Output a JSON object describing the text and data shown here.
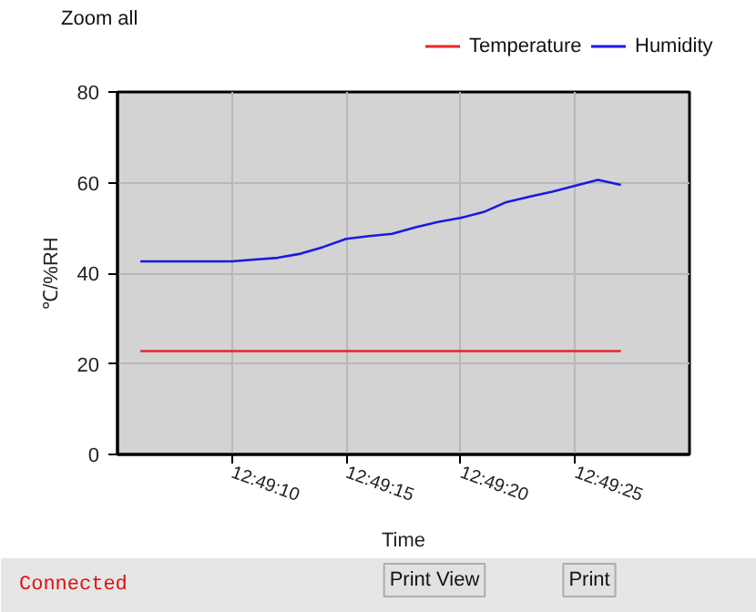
{
  "chart_data": {
    "type": "line",
    "xlabel": "Time",
    "ylabel": "℃/%RH",
    "x": [
      12.818333,
      12.818611,
      12.818889,
      12.819167,
      12.819444,
      12.819722,
      12.82,
      12.820278,
      12.820556,
      12.820833,
      12.821111,
      12.821389,
      12.821667,
      12.821944,
      12.822222,
      12.8225,
      12.822778,
      12.823056,
      12.823333,
      12.823611,
      12.823889,
      12.824167
    ],
    "series": [
      {
        "name": "Temperature",
        "color": "#e8262b",
        "values": [
          22.8,
          22.8,
          22.8,
          22.8,
          22.8,
          22.8,
          22.8,
          22.8,
          22.8,
          22.8,
          22.8,
          22.8,
          22.8,
          22.8,
          22.8,
          22.8,
          22.8,
          22.8,
          22.8,
          22.8,
          22.8,
          22.8
        ]
      },
      {
        "name": "Humidity",
        "color": "#1a1ae0",
        "values": [
          42.6,
          42.6,
          42.6,
          42.6,
          42.6,
          43.0,
          43.4,
          44.3,
          45.8,
          47.6,
          48.2,
          48.7,
          50.1,
          51.3,
          52.2,
          53.5,
          55.7,
          56.9,
          58.0,
          59.3,
          60.6,
          59.5
        ]
      }
    ],
    "xlim": [
      12.818056,
      12.825
    ],
    "xticks": [
      {
        "value": 12.819444,
        "label": "12:49:10"
      },
      {
        "value": 12.820833,
        "label": "12:49:15"
      },
      {
        "value": 12.822222,
        "label": "12:49:20"
      },
      {
        "value": 12.823611,
        "label": "12:49:25"
      }
    ],
    "ylim": [
      0,
      80
    ],
    "yticks": [
      0,
      20,
      40,
      60,
      80
    ],
    "grid": true,
    "legend": "top right",
    "marker": "none",
    "line_style": "solid",
    "annotations": [
      "Zoom all",
      "Connected",
      "Print View",
      "Print"
    ]
  }
}
